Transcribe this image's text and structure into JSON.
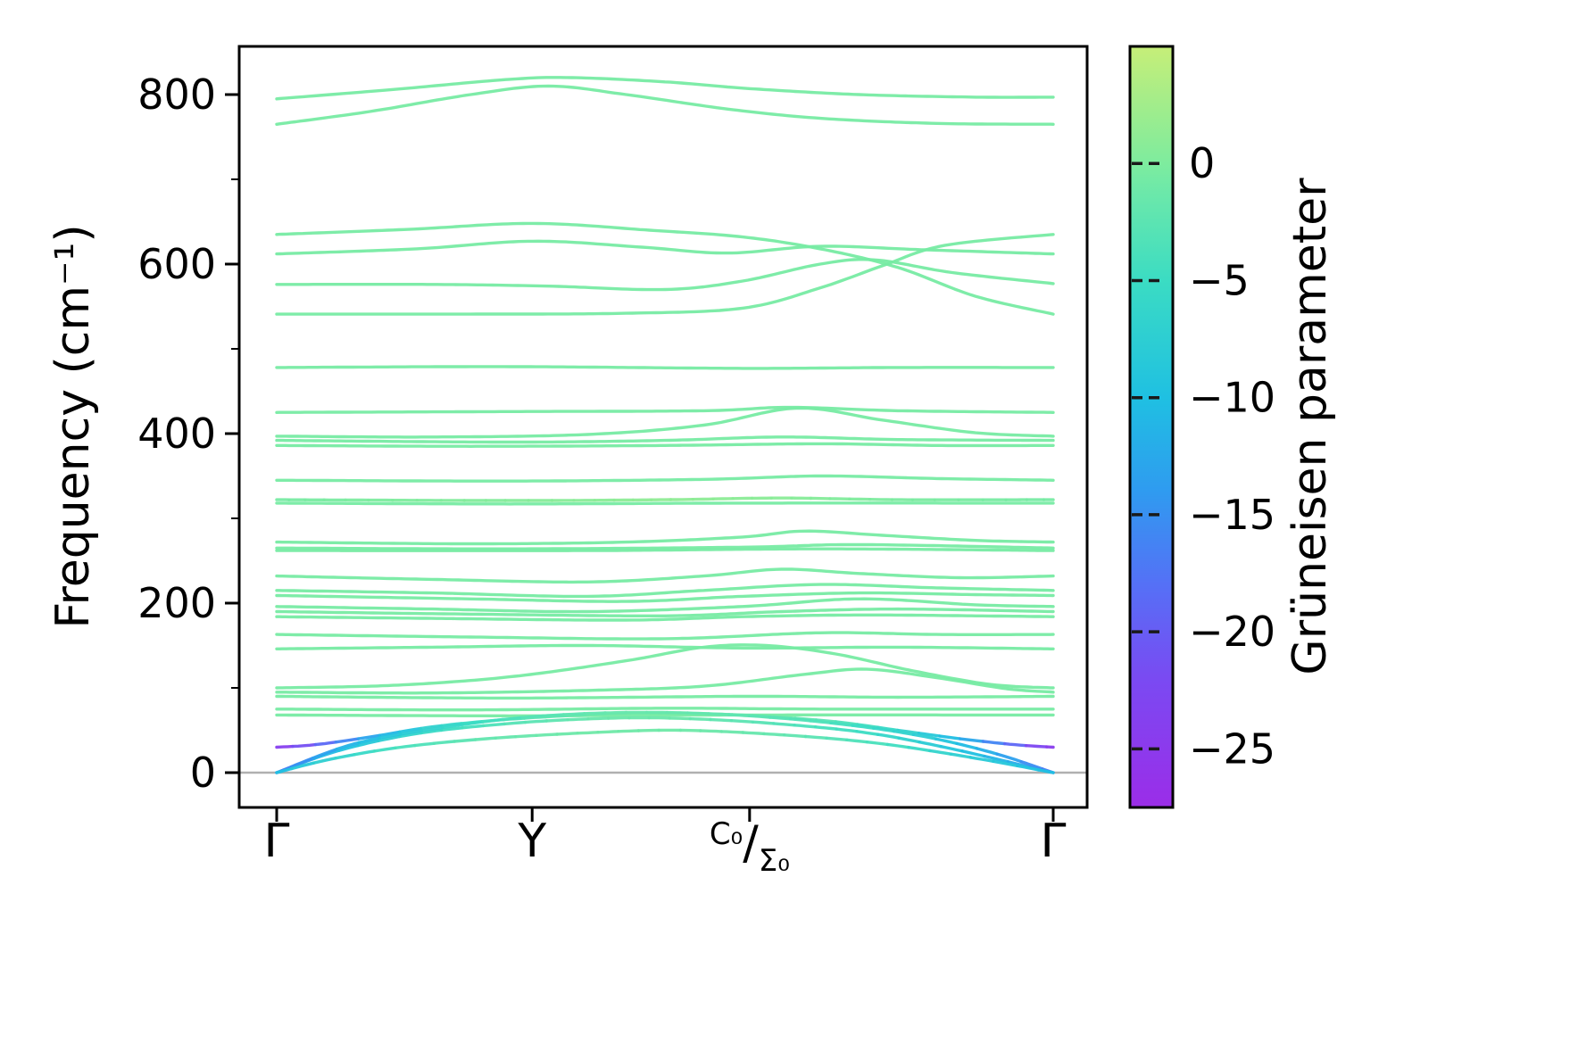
{
  "figure": {
    "background": "#ffffff",
    "axis_color": "#000000",
    "zero_line_color": "#b0b0b0"
  },
  "chart_data": {
    "type": "line",
    "title": "",
    "xlabel": "",
    "ylabel": "Frequency (cm⁻¹)",
    "ylim": [
      -41,
      857
    ],
    "grid": false,
    "x_path": [
      "Γ",
      "Y",
      "C₀/Σ₀",
      "Γ"
    ],
    "xticks": [
      {
        "label": "Γ",
        "t": 0
      },
      {
        "label": "Y",
        "t": 0.329
      },
      {
        "label": "C₀/Σ₀",
        "t": 0.609,
        "fraction": {
          "num": "C₀",
          "slash": "/",
          "den": "Σ₀"
        }
      },
      {
        "label": "Γ",
        "t": 1
      }
    ],
    "yticks": [
      {
        "label": "0",
        "value": 0
      },
      {
        "label": "200",
        "value": 200
      },
      {
        "label": "400",
        "value": 400
      },
      {
        "label": "600",
        "value": 600
      },
      {
        "label": "800",
        "value": 800
      }
    ],
    "yticks_minor": [
      100,
      300,
      500,
      700
    ],
    "zero_line": true,
    "colorbar": {
      "label": "Grüneisen parameter",
      "vmin": -27.5,
      "vmax": 5,
      "ticks": [
        {
          "label": "0",
          "value": 0
        },
        {
          "label": "−5",
          "value": -5
        },
        {
          "label": "−10",
          "value": -10
        },
        {
          "label": "−15",
          "value": -15
        },
        {
          "label": "−20",
          "value": -20
        },
        {
          "label": "−25",
          "value": -25
        }
      ]
    },
    "colormap_stops": [
      [
        -27.5,
        "#9b2de8"
      ],
      [
        -22,
        "#7a4af2"
      ],
      [
        -18,
        "#5570f6"
      ],
      [
        -14,
        "#2f9bf0"
      ],
      [
        -10,
        "#1fc0e2"
      ],
      [
        -5,
        "#3bdcc3"
      ],
      [
        -1,
        "#6fe9a8"
      ],
      [
        0,
        "#7eec9e"
      ],
      [
        5,
        "#c6ee78"
      ]
    ],
    "bands": [
      {
        "g": -0.5,
        "points": [
          [
            0,
            795
          ],
          [
            0.15,
            806
          ],
          [
            0.3,
            818
          ],
          [
            0.38,
            820
          ],
          [
            0.5,
            815
          ],
          [
            0.61,
            807
          ],
          [
            0.75,
            800
          ],
          [
            0.9,
            797
          ],
          [
            1,
            797
          ]
        ]
      },
      {
        "g": -0.5,
        "points": [
          [
            0,
            765
          ],
          [
            0.12,
            780
          ],
          [
            0.25,
            800
          ],
          [
            0.35,
            810
          ],
          [
            0.45,
            800
          ],
          [
            0.58,
            783
          ],
          [
            0.7,
            772
          ],
          [
            0.85,
            766
          ],
          [
            1,
            765
          ]
        ]
      },
      {
        "g": -0.5,
        "points": [
          [
            0,
            635
          ],
          [
            0.17,
            641
          ],
          [
            0.33,
            648
          ],
          [
            0.48,
            640
          ],
          [
            0.6,
            632
          ],
          [
            0.7,
            618
          ],
          [
            0.8,
            596
          ],
          [
            0.9,
            562
          ],
          [
            1,
            541
          ]
        ]
      },
      {
        "g": -0.5,
        "points": [
          [
            0,
            612
          ],
          [
            0.18,
            618
          ],
          [
            0.33,
            627
          ],
          [
            0.47,
            620
          ],
          [
            0.58,
            613
          ],
          [
            0.7,
            621
          ],
          [
            0.83,
            617
          ],
          [
            1,
            612
          ]
        ]
      },
      {
        "g": -0.5,
        "points": [
          [
            0,
            576
          ],
          [
            0.2,
            576
          ],
          [
            0.35,
            574
          ],
          [
            0.5,
            570
          ],
          [
            0.6,
            580
          ],
          [
            0.7,
            600
          ],
          [
            0.77,
            605
          ],
          [
            0.87,
            590
          ],
          [
            1,
            577
          ]
        ]
      },
      {
        "g": -0.5,
        "points": [
          [
            0,
            541
          ],
          [
            0.25,
            541
          ],
          [
            0.45,
            542
          ],
          [
            0.6,
            548
          ],
          [
            0.7,
            572
          ],
          [
            0.78,
            598
          ],
          [
            0.86,
            622
          ],
          [
            1,
            635
          ]
        ]
      },
      {
        "g": -0.5,
        "points": [
          [
            0,
            478
          ],
          [
            0.3,
            479
          ],
          [
            0.6,
            477
          ],
          [
            0.8,
            478
          ],
          [
            1,
            478
          ]
        ]
      },
      {
        "g": -0.5,
        "points": [
          [
            0,
            425
          ],
          [
            0.3,
            426
          ],
          [
            0.55,
            427
          ],
          [
            0.66,
            431
          ],
          [
            0.8,
            427
          ],
          [
            1,
            425
          ]
        ]
      },
      {
        "g": -0.5,
        "points": [
          [
            0,
            397
          ],
          [
            0.2,
            396
          ],
          [
            0.4,
            399
          ],
          [
            0.55,
            410
          ],
          [
            0.67,
            430
          ],
          [
            0.78,
            416
          ],
          [
            0.9,
            401
          ],
          [
            1,
            397
          ]
        ]
      },
      {
        "g": -0.5,
        "points": [
          [
            0,
            392
          ],
          [
            0.3,
            390
          ],
          [
            0.5,
            392
          ],
          [
            0.65,
            396
          ],
          [
            0.8,
            393
          ],
          [
            1,
            392
          ]
        ]
      },
      {
        "g": -0.5,
        "points": [
          [
            0,
            386
          ],
          [
            0.25,
            385
          ],
          [
            0.5,
            386
          ],
          [
            0.7,
            388
          ],
          [
            0.85,
            386
          ],
          [
            1,
            386
          ]
        ]
      },
      {
        "g": -0.5,
        "points": [
          [
            0,
            345
          ],
          [
            0.3,
            344
          ],
          [
            0.55,
            346
          ],
          [
            0.7,
            350
          ],
          [
            0.85,
            347
          ],
          [
            1,
            345
          ]
        ]
      },
      {
        "g_points": [
          -0.5,
          0.5,
          1.2,
          0.8,
          -0.2,
          -0.5
        ],
        "points": [
          [
            0,
            322
          ],
          [
            0.3,
            321
          ],
          [
            0.5,
            322
          ],
          [
            0.65,
            324
          ],
          [
            0.8,
            322
          ],
          [
            1,
            322
          ]
        ]
      },
      {
        "g": -0.5,
        "points": [
          [
            0,
            318
          ],
          [
            0.3,
            317
          ],
          [
            0.6,
            318
          ],
          [
            1,
            318
          ]
        ]
      },
      {
        "g": -0.5,
        "points": [
          [
            0,
            272
          ],
          [
            0.25,
            270
          ],
          [
            0.45,
            272
          ],
          [
            0.6,
            278
          ],
          [
            0.68,
            285
          ],
          [
            0.78,
            280
          ],
          [
            0.9,
            274
          ],
          [
            1,
            272
          ]
        ]
      },
      {
        "g": -0.5,
        "points": [
          [
            0,
            265
          ],
          [
            0.3,
            264
          ],
          [
            0.6,
            266
          ],
          [
            0.75,
            269
          ],
          [
            1,
            265
          ]
        ]
      },
      {
        "g": -0.5,
        "points": [
          [
            0,
            262
          ],
          [
            0.4,
            262
          ],
          [
            0.7,
            264
          ],
          [
            1,
            262
          ]
        ]
      },
      {
        "g": -0.5,
        "points": [
          [
            0,
            232
          ],
          [
            0.2,
            228
          ],
          [
            0.4,
            225
          ],
          [
            0.55,
            232
          ],
          [
            0.65,
            240
          ],
          [
            0.75,
            235
          ],
          [
            0.88,
            230
          ],
          [
            1,
            232
          ]
        ]
      },
      {
        "g": -0.5,
        "points": [
          [
            0,
            215
          ],
          [
            0.2,
            212
          ],
          [
            0.4,
            208
          ],
          [
            0.55,
            215
          ],
          [
            0.7,
            222
          ],
          [
            0.85,
            218
          ],
          [
            1,
            215
          ]
        ]
      },
      {
        "g": -0.5,
        "points": [
          [
            0,
            209
          ],
          [
            0.25,
            205
          ],
          [
            0.45,
            202
          ],
          [
            0.6,
            208
          ],
          [
            0.75,
            212
          ],
          [
            0.9,
            210
          ],
          [
            1,
            209
          ]
        ]
      },
      {
        "g": -0.5,
        "points": [
          [
            0,
            196
          ],
          [
            0.2,
            193
          ],
          [
            0.4,
            190
          ],
          [
            0.6,
            196
          ],
          [
            0.75,
            205
          ],
          [
            0.9,
            198
          ],
          [
            1,
            196
          ]
        ]
      },
      {
        "g": -0.5,
        "points": [
          [
            0,
            190
          ],
          [
            0.25,
            187
          ],
          [
            0.5,
            185
          ],
          [
            0.65,
            190
          ],
          [
            0.8,
            193
          ],
          [
            1,
            190
          ]
        ]
      },
      {
        "g": -0.5,
        "points": [
          [
            0,
            184
          ],
          [
            0.2,
            182
          ],
          [
            0.45,
            180
          ],
          [
            0.6,
            184
          ],
          [
            0.75,
            186
          ],
          [
            0.9,
            185
          ],
          [
            1,
            184
          ]
        ]
      },
      {
        "g": -0.5,
        "points": [
          [
            0,
            163
          ],
          [
            0.25,
            160
          ],
          [
            0.5,
            158
          ],
          [
            0.7,
            165
          ],
          [
            0.85,
            163
          ],
          [
            1,
            163
          ]
        ]
      },
      {
        "g": -0.5,
        "points": [
          [
            0,
            146
          ],
          [
            0.2,
            148
          ],
          [
            0.4,
            150
          ],
          [
            0.6,
            147
          ],
          [
            0.8,
            148
          ],
          [
            1,
            146
          ]
        ]
      },
      {
        "g": -0.5,
        "points": [
          [
            0,
            100
          ],
          [
            0.15,
            103
          ],
          [
            0.3,
            113
          ],
          [
            0.45,
            132
          ],
          [
            0.55,
            148
          ],
          [
            0.63,
            150
          ],
          [
            0.72,
            140
          ],
          [
            0.82,
            120
          ],
          [
            0.92,
            104
          ],
          [
            1,
            100
          ]
        ]
      },
      {
        "g": -0.5,
        "points": [
          [
            0,
            95
          ],
          [
            0.2,
            94
          ],
          [
            0.4,
            97
          ],
          [
            0.55,
            102
          ],
          [
            0.68,
            116
          ],
          [
            0.76,
            122
          ],
          [
            0.85,
            112
          ],
          [
            0.94,
            99
          ],
          [
            1,
            95
          ]
        ]
      },
      {
        "g": -0.5,
        "points": [
          [
            0,
            90
          ],
          [
            0.3,
            88
          ],
          [
            0.6,
            90
          ],
          [
            0.8,
            89
          ],
          [
            1,
            90
          ]
        ]
      },
      {
        "g": -0.5,
        "points": [
          [
            0,
            75
          ],
          [
            0.25,
            74
          ],
          [
            0.5,
            76
          ],
          [
            0.7,
            75
          ],
          [
            1,
            75
          ]
        ]
      },
      {
        "g": -0.5,
        "points": [
          [
            0,
            68
          ],
          [
            0.3,
            67
          ],
          [
            0.6,
            68
          ],
          [
            1,
            68
          ]
        ]
      },
      {
        "g_points": [
          -25,
          -20,
          -13,
          -7,
          -3,
          -1,
          -0.5,
          -1,
          -3,
          -6,
          -11,
          -19,
          -25
        ],
        "points": [
          [
            0,
            30
          ],
          [
            0.05,
            33
          ],
          [
            0.12,
            42
          ],
          [
            0.2,
            54
          ],
          [
            0.3,
            63
          ],
          [
            0.42,
            69
          ],
          [
            0.52,
            70
          ],
          [
            0.62,
            67
          ],
          [
            0.72,
            60
          ],
          [
            0.8,
            50
          ],
          [
            0.88,
            40
          ],
          [
            0.95,
            33
          ],
          [
            1,
            30
          ]
        ]
      },
      {
        "g_points": [
          -14,
          -10,
          -6,
          -3,
          -1.5,
          -1.5,
          -3,
          -5,
          -9,
          -14
        ],
        "points": [
          [
            0,
            0
          ],
          [
            0.08,
            26
          ],
          [
            0.18,
            46
          ],
          [
            0.3,
            58
          ],
          [
            0.42,
            64
          ],
          [
            0.52,
            64
          ],
          [
            0.64,
            58
          ],
          [
            0.76,
            47
          ],
          [
            0.87,
            28
          ],
          [
            1,
            0
          ]
        ]
      },
      {
        "g_points": [
          -17,
          -11,
          -6,
          -3,
          -1.5,
          -2,
          -3.5,
          -7,
          -12,
          -17
        ],
        "points": [
          [
            0,
            0
          ],
          [
            0.1,
            34
          ],
          [
            0.22,
            54
          ],
          [
            0.33,
            66
          ],
          [
            0.45,
            71
          ],
          [
            0.57,
            69
          ],
          [
            0.7,
            60
          ],
          [
            0.82,
            45
          ],
          [
            0.92,
            24
          ],
          [
            1,
            0
          ]
        ]
      },
      {
        "g_points": [
          -10,
          -7,
          -4,
          -2,
          -1,
          -1,
          -2,
          -4,
          -8,
          -10
        ],
        "points": [
          [
            0,
            0
          ],
          [
            0.07,
            16
          ],
          [
            0.16,
            30
          ],
          [
            0.27,
            40
          ],
          [
            0.4,
            47
          ],
          [
            0.52,
            50
          ],
          [
            0.66,
            44
          ],
          [
            0.78,
            34
          ],
          [
            0.9,
            17
          ],
          [
            1,
            0
          ]
        ]
      }
    ]
  }
}
